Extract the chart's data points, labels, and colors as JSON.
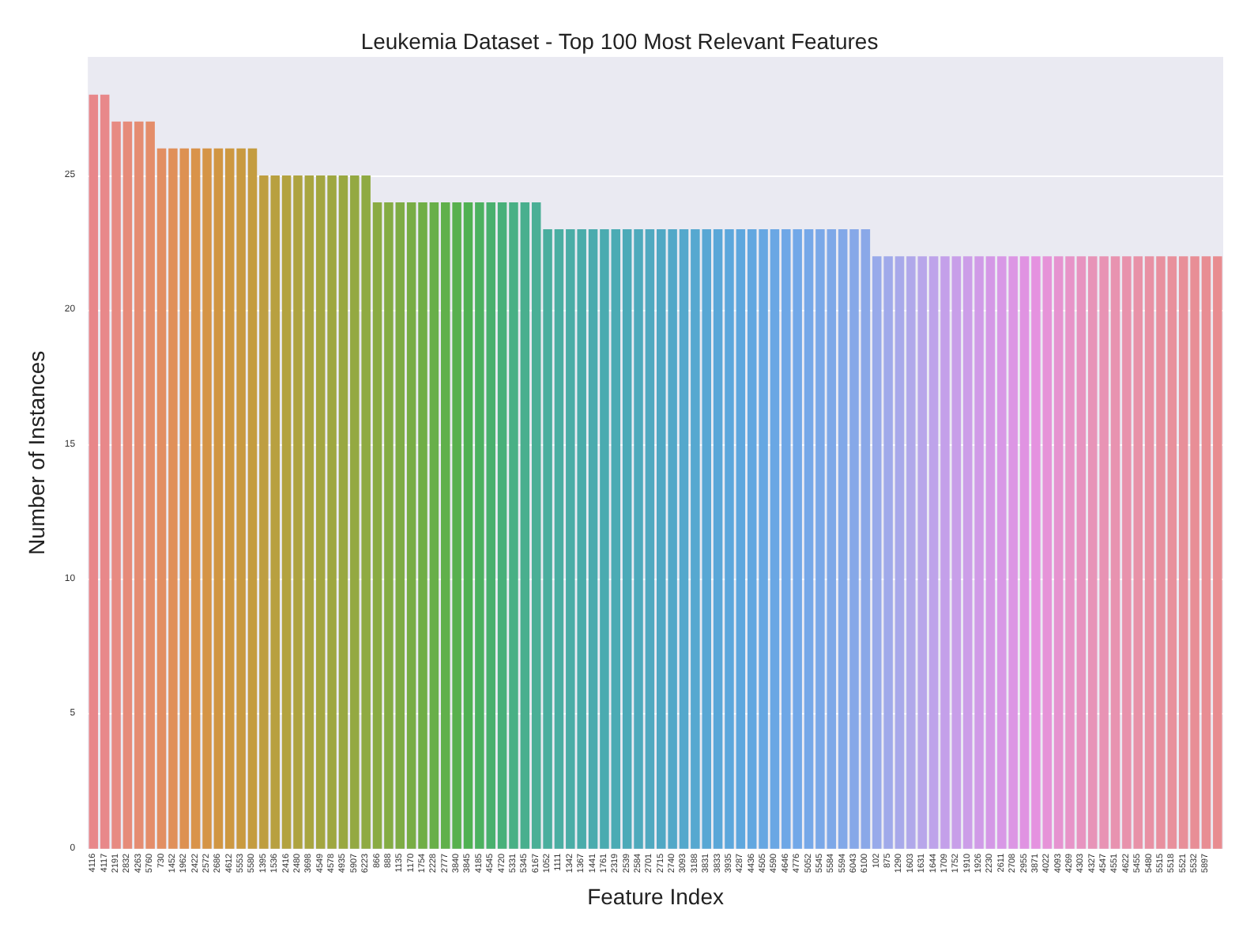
{
  "chart_data": {
    "type": "bar",
    "title": "Leukemia Dataset - Top 100 Most Relevant Features",
    "xlabel": "Feature Index",
    "ylabel": "Number of Instances",
    "categories": [
      "4116",
      "4117",
      "2191",
      "2832",
      "4263",
      "5760",
      "730",
      "1452",
      "1962",
      "2422",
      "2572",
      "2686",
      "4612",
      "5553",
      "5580",
      "1395",
      "1536",
      "2416",
      "2480",
      "3698",
      "4549",
      "4578",
      "4935",
      "5907",
      "6223",
      "866",
      "888",
      "1135",
      "1170",
      "1754",
      "2228",
      "2777",
      "3840",
      "3845",
      "4185",
      "4545",
      "4720",
      "5331",
      "5345",
      "6167",
      "1052",
      "1111",
      "1342",
      "1367",
      "1441",
      "1761",
      "2319",
      "2539",
      "2584",
      "2701",
      "2715",
      "2740",
      "3093",
      "3188",
      "3831",
      "3833",
      "3935",
      "4287",
      "4436",
      "4505",
      "4590",
      "4646",
      "4776",
      "5052",
      "5545",
      "5584",
      "5594",
      "6043",
      "6100",
      "102",
      "875",
      "1290",
      "1603",
      "1631",
      "1644",
      "1709",
      "1752",
      "1910",
      "1926",
      "2230",
      "2611",
      "2708",
      "2955",
      "3871",
      "4022",
      "4093",
      "4269",
      "4303",
      "4327",
      "4547",
      "4551",
      "4622",
      "5455",
      "5480",
      "5515",
      "5518",
      "5521",
      "5532",
      "5897",
      null
    ],
    "values": [
      28,
      28,
      27,
      27,
      27,
      27,
      26,
      26,
      26,
      26,
      26,
      26,
      26,
      26,
      26,
      25,
      25,
      25,
      25,
      25,
      25,
      25,
      25,
      25,
      25,
      24,
      24,
      24,
      24,
      24,
      24,
      24,
      24,
      24,
      24,
      24,
      24,
      24,
      24,
      24,
      23,
      23,
      23,
      23,
      23,
      23,
      23,
      23,
      23,
      23,
      23,
      23,
      23,
      23,
      23,
      23,
      23,
      23,
      23,
      23,
      23,
      23,
      23,
      23,
      23,
      23,
      23,
      23,
      23,
      22,
      22,
      22,
      22,
      22,
      22,
      22,
      22,
      22,
      22,
      22,
      22,
      22,
      22,
      22,
      22,
      22,
      22,
      22,
      22,
      22,
      22,
      22,
      22,
      22,
      22,
      22,
      22,
      22,
      22,
      22
    ],
    "colors": [
      "#e8878a",
      "#e8888a",
      "#e78a82",
      "#e68b7a",
      "#e58c72",
      "#e48d6a",
      "#e28f62",
      "#e0905a",
      "#dd9152",
      "#d9934a",
      "#d59446",
      "#d19643",
      "#cd9841",
      "#c99a40",
      "#c49c40",
      "#be9e40",
      "#b8a040",
      "#b3a240",
      "#aea340",
      "#a8a540",
      "#a3a640",
      "#9ea740",
      "#99a841",
      "#94a942",
      "#8faa42",
      "#8aab43",
      "#84ac44",
      "#7eac45",
      "#78ad45",
      "#70ae47",
      "#68af49",
      "#60b04b",
      "#58b04e",
      "#50b152",
      "#4cb160",
      "#49b06e",
      "#48b07a",
      "#48b085",
      "#49af8e",
      "#4aaf96",
      "#4aae9e",
      "#4aaea2",
      "#4aada6",
      "#4aacaa",
      "#4aabae",
      "#4aabb0",
      "#4babb4",
      "#4caab8",
      "#4eaabc",
      "#50a9c0",
      "#50a8c4",
      "#52a8c8",
      "#54a8cc",
      "#56a8d0",
      "#58a7d4",
      "#5aa7d8",
      "#5ca7dc",
      "#5ea7de",
      "#62a7e0",
      "#66a7e2",
      "#6aa7e4",
      "#6ea7e6",
      "#72a8e8",
      "#76a8e8",
      "#7aa8e8",
      "#7ea8e8",
      "#82a8e8",
      "#86a8e8",
      "#8aa8e8",
      "#98aaea",
      "#a0aaea",
      "#a8a9ea",
      "#b0a8ea",
      "#b8a6ea",
      "#bea3ea",
      "#c4a0ea",
      "#c89fe9",
      "#cc9ee8",
      "#d09be7",
      "#d498e6",
      "#d898e6",
      "#dc96e4",
      "#e093e2",
      "#e592e0",
      "#e693d8",
      "#e693d0",
      "#e794c8",
      "#e794c0",
      "#e794b8",
      "#e893b4",
      "#e893b0",
      "#e892ac",
      "#e892a8",
      "#e891a4",
      "#e8909f",
      "#e8909c",
      "#e88f99",
      "#e88e96",
      "#e88d93",
      "#e88c90"
    ],
    "ylim": [
      0,
      29.4
    ],
    "yticks": [
      0,
      5,
      10,
      15,
      20,
      25
    ],
    "grid": "y"
  }
}
